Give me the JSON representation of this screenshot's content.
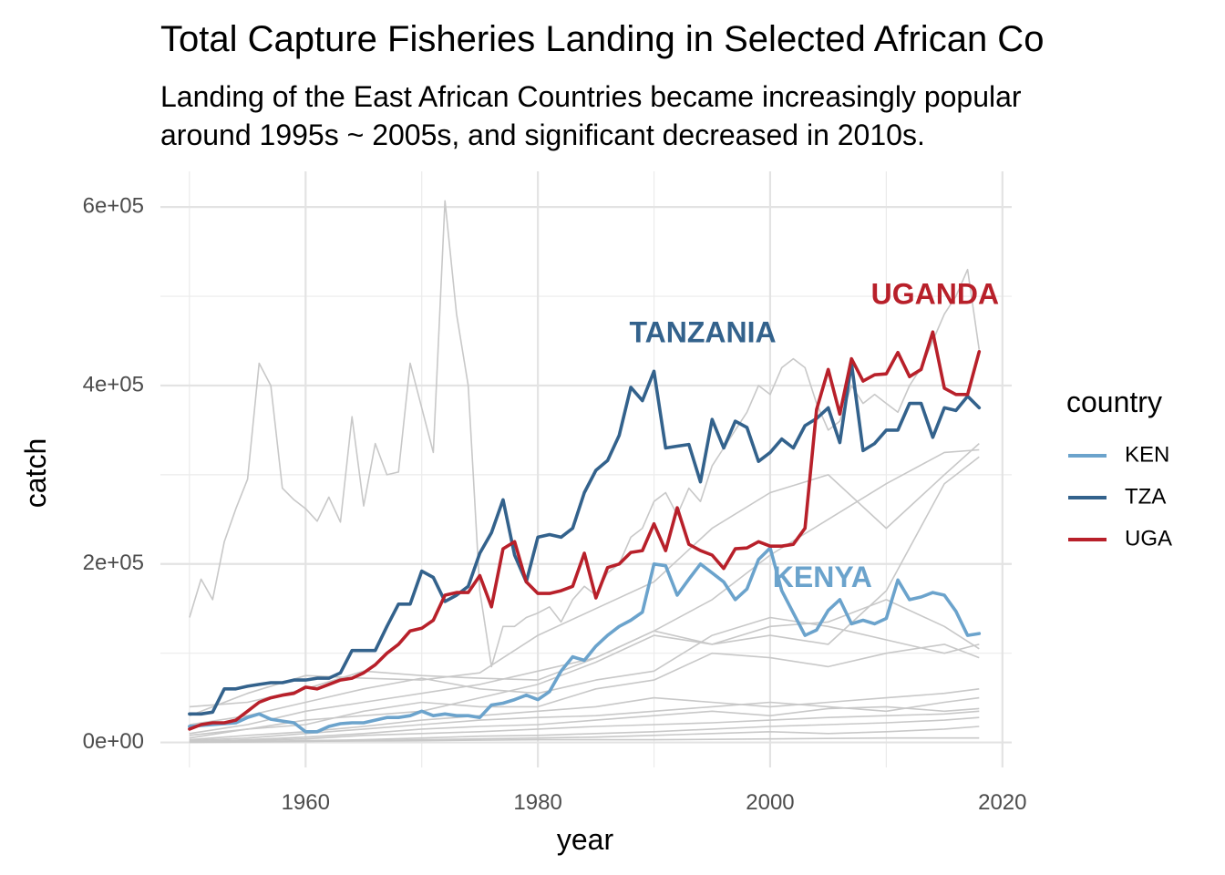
{
  "chart_data": {
    "type": "line",
    "title": "Total Capture Fisheries Landing in Selected African Co",
    "subtitle_lines": [
      "Landing of the East African Countries became increasingly popular",
      "around 1995s ~ 2005s, and significant decreased in 2010s."
    ],
    "xlabel": "year",
    "ylabel": "catch",
    "xlim": [
      1947.5,
      2020.8
    ],
    "ylim": [
      -28000,
      640000
    ],
    "x_ticks": [
      1960,
      1980,
      2000,
      2020
    ],
    "x_tick_labels": [
      "1960",
      "1980",
      "2000",
      "2020"
    ],
    "x_minor_ticks": [
      1950,
      1970,
      1990,
      2010
    ],
    "y_ticks": [
      0,
      200000,
      400000,
      600000
    ],
    "y_tick_labels": [
      "0e+00",
      "2e+05",
      "4e+05",
      "6e+05"
    ],
    "y_minor_ticks": [
      100000,
      300000,
      500000
    ],
    "grid": true,
    "legend": {
      "title": "country",
      "position": "right",
      "entries": [
        {
          "label": "KEN",
          "color": "#6BA3CC"
        },
        {
          "label": "TZA",
          "color": "#33628C"
        },
        {
          "label": "UGA",
          "color": "#B8202A"
        }
      ]
    },
    "series": [
      {
        "name": "KEN",
        "color": "#6BA3CC",
        "x": [
          1950,
          1951,
          1952,
          1953,
          1954,
          1955,
          1956,
          1957,
          1958,
          1959,
          1960,
          1961,
          1962,
          1963,
          1964,
          1965,
          1966,
          1967,
          1968,
          1969,
          1970,
          1971,
          1972,
          1973,
          1974,
          1975,
          1976,
          1977,
          1978,
          1979,
          1980,
          1981,
          1982,
          1983,
          1984,
          1985,
          1986,
          1987,
          1988,
          1989,
          1990,
          1991,
          1992,
          1993,
          1994,
          1995,
          1996,
          1997,
          1998,
          1999,
          2000,
          2001,
          2002,
          2003,
          2004,
          2005,
          2006,
          2007,
          2008,
          2009,
          2010,
          2011,
          2012,
          2013,
          2014,
          2015,
          2016,
          2017,
          2018
        ],
        "y": [
          18000,
          19000,
          20000,
          21000,
          22000,
          28000,
          32000,
          26000,
          24000,
          22000,
          12000,
          12000,
          18000,
          21000,
          22000,
          22000,
          25000,
          28000,
          28000,
          30000,
          35000,
          30000,
          32000,
          30000,
          30000,
          28000,
          42000,
          44000,
          48000,
          53000,
          48000,
          57000,
          80000,
          96000,
          92000,
          108000,
          120000,
          130000,
          137000,
          146000,
          200000,
          198000,
          165000,
          183000,
          200000,
          190000,
          180000,
          160000,
          172000,
          205000,
          218000,
          170000,
          145000,
          120000,
          126000,
          148000,
          160000,
          133000,
          137000,
          133000,
          139000,
          182000,
          160000,
          163000,
          168000,
          165000,
          147000,
          120000,
          122000
        ]
      },
      {
        "name": "TZA",
        "color": "#33628C",
        "x": [
          1950,
          1951,
          1952,
          1953,
          1954,
          1955,
          1956,
          1957,
          1958,
          1959,
          1960,
          1961,
          1962,
          1963,
          1964,
          1965,
          1966,
          1967,
          1968,
          1969,
          1970,
          1971,
          1972,
          1973,
          1974,
          1975,
          1976,
          1977,
          1978,
          1979,
          1980,
          1981,
          1982,
          1983,
          1984,
          1985,
          1986,
          1987,
          1988,
          1989,
          1990,
          1991,
          1992,
          1993,
          1994,
          1995,
          1996,
          1997,
          1998,
          1999,
          2000,
          2001,
          2002,
          2003,
          2004,
          2005,
          2006,
          2007,
          2008,
          2009,
          2010,
          2011,
          2012,
          2013,
          2014,
          2015,
          2016,
          2017,
          2018
        ],
        "y": [
          32000,
          32000,
          34000,
          60000,
          60000,
          63000,
          65000,
          67000,
          67000,
          70000,
          70000,
          72000,
          72000,
          78000,
          103000,
          103000,
          103000,
          130000,
          155000,
          155000,
          192000,
          185000,
          158000,
          165000,
          175000,
          212000,
          235000,
          272000,
          210000,
          180000,
          230000,
          233000,
          230000,
          240000,
          280000,
          305000,
          316000,
          344000,
          398000,
          383000,
          416000,
          330000,
          332000,
          334000,
          292000,
          362000,
          330000,
          360000,
          353000,
          315000,
          325000,
          340000,
          330000,
          355000,
          363000,
          375000,
          336000,
          425000,
          327000,
          335000,
          350000,
          350000,
          380000,
          380000,
          342000,
          375000,
          372000,
          388000,
          375000
        ]
      },
      {
        "name": "UGA",
        "color": "#B8202A",
        "x": [
          1950,
          1951,
          1952,
          1953,
          1954,
          1955,
          1956,
          1957,
          1958,
          1959,
          1960,
          1961,
          1962,
          1963,
          1964,
          1965,
          1966,
          1967,
          1968,
          1969,
          1970,
          1971,
          1972,
          1973,
          1974,
          1975,
          1976,
          1977,
          1978,
          1979,
          1980,
          1981,
          1982,
          1983,
          1984,
          1985,
          1986,
          1987,
          1988,
          1989,
          1990,
          1991,
          1992,
          1993,
          1994,
          1995,
          1996,
          1997,
          1998,
          1999,
          2000,
          2001,
          2002,
          2003,
          2004,
          2005,
          2006,
          2007,
          2008,
          2009,
          2010,
          2011,
          2012,
          2013,
          2014,
          2015,
          2016,
          2017,
          2018
        ],
        "y": [
          15000,
          20000,
          22000,
          22000,
          25000,
          35000,
          45000,
          50000,
          53000,
          55000,
          62000,
          60000,
          65000,
          70000,
          72000,
          78000,
          87000,
          100000,
          110000,
          125000,
          128000,
          137000,
          165000,
          168000,
          168000,
          187000,
          152000,
          217000,
          225000,
          180000,
          167000,
          167000,
          170000,
          175000,
          212000,
          162000,
          196000,
          200000,
          213000,
          215000,
          245000,
          215000,
          263000,
          222000,
          215000,
          210000,
          195000,
          217000,
          218000,
          225000,
          220000,
          220000,
          222000,
          240000,
          373000,
          418000,
          368000,
          430000,
          405000,
          412000,
          413000,
          437000,
          410000,
          418000,
          460000,
          397000,
          390000,
          390000,
          438000
        ]
      }
    ],
    "background_series": [
      {
        "x": [
          1950,
          1951,
          1952,
          1953,
          1954,
          1955,
          1956,
          1957,
          1958,
          1959,
          1960,
          1961,
          1962,
          1963,
          1964,
          1965,
          1966,
          1967,
          1968,
          1969,
          1970,
          1971,
          1972,
          1973,
          1974,
          1975,
          1976,
          1977,
          1978,
          1979,
          1980,
          1981,
          1982,
          1983,
          1984,
          1985,
          1986,
          1987,
          1988,
          1989,
          1990,
          1991,
          1992,
          1993,
          1994,
          1995,
          1996,
          1997,
          1998,
          1999,
          2000,
          2001,
          2002,
          2003,
          2004,
          2005,
          2006,
          2007,
          2008,
          2009,
          2010,
          2011,
          2012,
          2013,
          2014,
          2015,
          2016,
          2017,
          2018
        ],
        "y": [
          140000,
          183000,
          160000,
          225000,
          262000,
          295000,
          425000,
          400000,
          285000,
          272000,
          262000,
          248000,
          275000,
          247000,
          365000,
          265000,
          335000,
          300000,
          303000,
          425000,
          375000,
          325000,
          607000,
          480000,
          400000,
          170000,
          85000,
          130000,
          130000,
          140000,
          145000,
          152000,
          135000,
          160000,
          175000,
          165000,
          190000,
          200000,
          230000,
          240000,
          270000,
          280000,
          255000,
          285000,
          270000,
          310000,
          330000,
          350000,
          370000,
          400000,
          390000,
          420000,
          430000,
          420000,
          380000,
          350000,
          360000,
          400000,
          380000,
          390000,
          380000,
          370000,
          400000,
          420000,
          450000,
          480000,
          500000,
          530000,
          440000
        ]
      },
      {
        "x": [
          1950,
          1955,
          1960,
          1965,
          1970,
          1975,
          1980,
          1985,
          1990,
          1995,
          2000,
          2005,
          2010,
          2015,
          2018
        ],
        "y": [
          10000,
          20000,
          35000,
          45000,
          55000,
          65000,
          80000,
          95000,
          125000,
          160000,
          210000,
          250000,
          290000,
          325000,
          328000
        ]
      },
      {
        "x": [
          1950,
          1955,
          1960,
          1965,
          1970,
          1975,
          1980,
          1985,
          1990,
          1995,
          2000,
          2005,
          2010,
          2015,
          2018
        ],
        "y": [
          30000,
          55000,
          75000,
          72000,
          70000,
          78000,
          120000,
          150000,
          180000,
          240000,
          280000,
          300000,
          240000,
          300000,
          335000
        ]
      },
      {
        "x": [
          1950,
          1955,
          1960,
          1965,
          1970,
          1975,
          1980,
          1985,
          1990,
          1995,
          2000,
          2005,
          2010,
          2015,
          2018
        ],
        "y": [
          40000,
          45000,
          60000,
          80000,
          75000,
          72000,
          70000,
          95000,
          125000,
          110000,
          120000,
          110000,
          170000,
          290000,
          320000
        ]
      },
      {
        "x": [
          1950,
          1955,
          1960,
          1965,
          1970,
          1975,
          1980,
          1985,
          1990,
          1995,
          2000,
          2005,
          2010,
          2015,
          2018
        ],
        "y": [
          20000,
          30000,
          45000,
          60000,
          72000,
          60000,
          55000,
          70000,
          80000,
          120000,
          140000,
          130000,
          115000,
          100000,
          110000
        ]
      },
      {
        "x": [
          1950,
          1955,
          1960,
          1965,
          1970,
          1975,
          1980,
          1985,
          1990,
          1995,
          2000,
          2005,
          2010,
          2015,
          2018
        ],
        "y": [
          8000,
          15000,
          20000,
          35000,
          45000,
          40000,
          40000,
          60000,
          70000,
          100000,
          95000,
          85000,
          100000,
          110000,
          95000
        ]
      },
      {
        "x": [
          1950,
          1955,
          1960,
          1965,
          1970,
          1975,
          1980,
          1985,
          1990,
          1995,
          2000,
          2005,
          2010,
          2015,
          2018
        ],
        "y": [
          5000,
          15000,
          25000,
          30000,
          35000,
          50000,
          65000,
          90000,
          120000,
          110000,
          130000,
          135000,
          160000,
          130000,
          105000
        ]
      },
      {
        "x": [
          1950,
          1955,
          1960,
          1965,
          1970,
          1975,
          1980,
          1985,
          1990,
          1995,
          2000,
          2005,
          2010,
          2015,
          2018
        ],
        "y": [
          3000,
          8000,
          12000,
          18000,
          25000,
          30000,
          35000,
          40000,
          50000,
          45000,
          40000,
          45000,
          50000,
          55000,
          60000
        ]
      },
      {
        "x": [
          1950,
          1955,
          1960,
          1965,
          1970,
          1975,
          1980,
          1985,
          1990,
          1995,
          2000,
          2005,
          2010,
          2015,
          2018
        ],
        "y": [
          2000,
          5000,
          10000,
          15000,
          20000,
          25000,
          28000,
          30000,
          35000,
          40000,
          45000,
          40000,
          35000,
          45000,
          50000
        ]
      },
      {
        "x": [
          1950,
          1955,
          1960,
          1965,
          1970,
          1975,
          1980,
          1985,
          1990,
          1995,
          2000,
          2005,
          2010,
          2015,
          2018
        ],
        "y": [
          1000,
          3000,
          6000,
          10000,
          15000,
          18000,
          20000,
          25000,
          30000,
          35000,
          30000,
          38000,
          40000,
          35000,
          38000
        ]
      },
      {
        "x": [
          1950,
          1955,
          1960,
          1965,
          1970,
          1975,
          1980,
          1985,
          1990,
          1995,
          2000,
          2005,
          2010,
          2015,
          2018
        ],
        "y": [
          500,
          2000,
          4000,
          8000,
          10000,
          12000,
          15000,
          18000,
          20000,
          22000,
          25000,
          28000,
          30000,
          32000,
          35000
        ]
      },
      {
        "x": [
          1950,
          1955,
          1960,
          1965,
          1970,
          1975,
          1980,
          1985,
          1990,
          1995,
          2000,
          2005,
          2010,
          2015,
          2018
        ],
        "y": [
          300,
          1000,
          2000,
          3000,
          5000,
          7000,
          8000,
          10000,
          12000,
          15000,
          18000,
          20000,
          22000,
          25000,
          28000
        ]
      },
      {
        "x": [
          1950,
          1955,
          1960,
          1965,
          1970,
          1975,
          1980,
          1985,
          1990,
          1995,
          2000,
          2005,
          2010,
          2015,
          2018
        ],
        "y": [
          200,
          500,
          1000,
          2000,
          3000,
          4000,
          5000,
          6000,
          8000,
          10000,
          12000,
          10000,
          12000,
          15000,
          18000
        ]
      },
      {
        "x": [
          1950,
          1960,
          1970,
          1980,
          1990,
          2000,
          2010,
          2018
        ],
        "y": [
          1000,
          1500,
          2000,
          3000,
          3000,
          4000,
          5000,
          5000
        ]
      }
    ],
    "annotations": [
      {
        "text": "TANZANIA",
        "x": 1994.2,
        "y": 457000,
        "color": "#33628C"
      },
      {
        "text": "UGANDA",
        "x": 2014.2,
        "y": 500000,
        "color": "#B8202A"
      },
      {
        "text": "KENYA",
        "x": 2004.5,
        "y": 183000,
        "color": "#6BA3CC"
      }
    ],
    "background_line_color": "#C8C8C8"
  }
}
